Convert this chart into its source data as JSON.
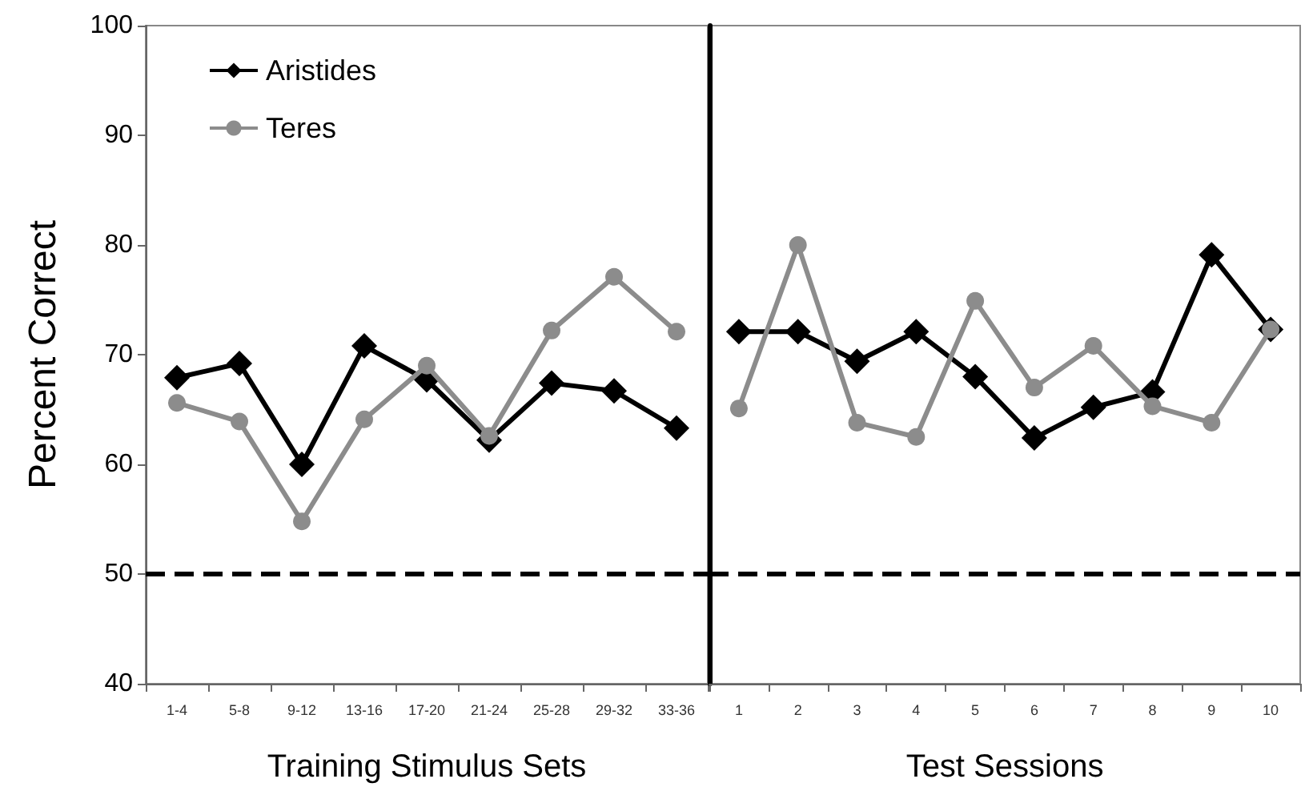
{
  "chart_data": [
    {
      "type": "line",
      "xlabel": "Training Stimulus Sets",
      "ylabel": "Percent Correct",
      "categories": [
        "1-4",
        "5-8",
        "9-12",
        "13-16",
        "17-20",
        "21-24",
        "25-28",
        "29-32",
        "33-36"
      ],
      "series": [
        {
          "name": "Aristides",
          "color": "#000000",
          "marker": "diamond",
          "values": [
            67.9,
            69.2,
            60.0,
            70.8,
            67.7,
            62.2,
            67.4,
            66.7,
            63.3
          ]
        },
        {
          "name": "Teres",
          "color": "#8c8c8c",
          "marker": "circle",
          "values": [
            65.6,
            63.9,
            54.8,
            64.1,
            69.0,
            62.6,
            72.2,
            77.1,
            72.1
          ]
        }
      ],
      "ylim": [
        40,
        100
      ],
      "yticks": [
        40,
        50,
        60,
        70,
        80,
        90,
        100
      ],
      "grid": false,
      "legend": "top left",
      "ref_lines": [
        {
          "axis": "y",
          "value": 50,
          "line_style": "dashed",
          "color": "#000000"
        }
      ]
    },
    {
      "type": "line",
      "xlabel": "Test Sessions",
      "categories": [
        "1",
        "2",
        "3",
        "4",
        "5",
        "6",
        "7",
        "8",
        "9",
        "10"
      ],
      "series": [
        {
          "color": "#000000",
          "marker": "diamond",
          "values": [
            72.1,
            72.1,
            69.4,
            72.1,
            68.0,
            62.4,
            65.2,
            66.6,
            79.1,
            72.3
          ]
        },
        {
          "color": "#8c8c8c",
          "marker": "circle",
          "values": [
            65.1,
            80.0,
            63.8,
            62.5,
            74.9,
            67.0,
            70.8,
            65.3,
            63.8,
            72.3
          ]
        }
      ],
      "ylim": [
        40,
        100
      ],
      "yticks": [
        40,
        50,
        60,
        70,
        80,
        90,
        100
      ],
      "grid": false,
      "tick_labels": "x",
      "ref_lines": [
        {
          "axis": "y",
          "value": 50,
          "line_style": "dashed",
          "color": "#000000"
        }
      ]
    }
  ]
}
